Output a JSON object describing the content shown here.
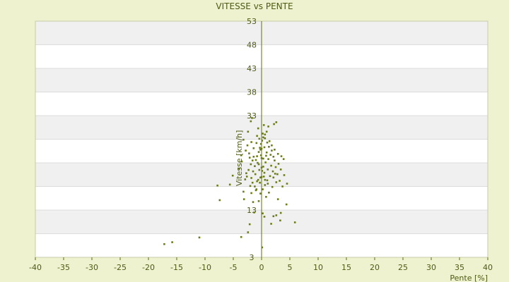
{
  "chart_data": {
    "type": "scatter",
    "title": "VITESSE vs PENTE",
    "xlabel": "Pente [%]",
    "ylabel": "Vitesse [km/h]",
    "xlim": [
      -40,
      40
    ],
    "ylim": [
      3,
      53
    ],
    "x_ticks": [
      -40,
      -35,
      -30,
      -25,
      -20,
      -15,
      -10,
      -5,
      0,
      5,
      10,
      15,
      20,
      25,
      30,
      35,
      40
    ],
    "y_ticks": [
      3,
      8,
      13,
      18,
      23,
      28,
      33,
      38,
      43,
      48,
      53
    ],
    "x_tick_labels": [
      "-40",
      "-35",
      "-30",
      "-25",
      "-20",
      "-15",
      "-10",
      "-5",
      "0",
      "5",
      "10",
      "15",
      "20",
      "25",
      "30",
      "35",
      "40"
    ],
    "y_tick_labels": [
      "3",
      "",
      "13",
      "",
      "",
      "",
      "33",
      "38",
      "43",
      "48",
      "53"
    ],
    "grid": true,
    "legend": "none",
    "colors": {
      "background": "#eef2cf",
      "plot_band_light": "#ffffff",
      "plot_band_dark": "#f0f0f0",
      "marker": "#6b7d16",
      "axis": "#5f6b1a",
      "text": "#4f5a14"
    },
    "points": [
      [
        -17.2,
        5.8
      ],
      [
        -15.8,
        6.2
      ],
      [
        -11,
        7.2
      ],
      [
        -3.6,
        7.3
      ],
      [
        -2.4,
        8.3
      ],
      [
        0.1,
        5.1
      ],
      [
        -2.1,
        10
      ],
      [
        -1.3,
        12.5
      ],
      [
        -1.5,
        14.7
      ],
      [
        -0.5,
        14.9
      ],
      [
        -1.8,
        16.6
      ],
      [
        0.2,
        12.3
      ],
      [
        0.5,
        11.6
      ],
      [
        -1,
        17.2
      ],
      [
        1.7,
        10.1
      ],
      [
        2.1,
        11.7
      ],
      [
        3.4,
        12.4
      ],
      [
        4.4,
        14.2
      ],
      [
        5.9,
        10.4
      ],
      [
        3.3,
        10.8
      ],
      [
        2.6,
        11.9
      ],
      [
        2.9,
        15.3
      ],
      [
        -7.4,
        15.1
      ],
      [
        -7.8,
        18.2
      ],
      [
        -5.6,
        18.4
      ],
      [
        -5.1,
        20.3
      ],
      [
        -3.1,
        15.3
      ],
      [
        -3.2,
        16.9
      ],
      [
        -2.9,
        19.5
      ],
      [
        -2.7,
        20.8
      ],
      [
        -4,
        21.8
      ],
      [
        -3.5,
        23.3
      ],
      [
        -3.6,
        24.6
      ],
      [
        -2.8,
        25.6
      ],
      [
        -2,
        18.1
      ],
      [
        -1.8,
        19.8
      ],
      [
        -1.5,
        21.2
      ],
      [
        -1.2,
        22.3
      ],
      [
        -1,
        23.6
      ],
      [
        -0.8,
        24.4
      ],
      [
        -0.5,
        25.3
      ],
      [
        -0.3,
        26.2
      ],
      [
        -0.1,
        27
      ],
      [
        0.1,
        27.7
      ],
      [
        0.3,
        28.4
      ],
      [
        0.6,
        29
      ],
      [
        0.9,
        29.6
      ],
      [
        -0.6,
        30.3
      ],
      [
        0.4,
        31
      ],
      [
        1.2,
        30.7
      ],
      [
        2.2,
        31.2
      ],
      [
        2.6,
        31.6
      ],
      [
        -2.4,
        29.6
      ],
      [
        -1.9,
        31.8
      ],
      [
        -1.7,
        32.5
      ],
      [
        -0.8,
        28.7
      ],
      [
        1.4,
        27.6
      ],
      [
        1.8,
        26.7
      ],
      [
        2.3,
        25.8
      ],
      [
        2.9,
        24.9
      ],
      [
        3.5,
        24.4
      ],
      [
        3.9,
        23.8
      ],
      [
        -1.8,
        27.4
      ],
      [
        -2.5,
        26.7
      ],
      [
        -3.2,
        27.9
      ],
      [
        -2.1,
        24.1
      ],
      [
        0.2,
        17.4
      ],
      [
        0.6,
        18.3
      ],
      [
        1,
        19.3
      ],
      [
        1.5,
        20.2
      ],
      [
        2,
        21.2
      ],
      [
        2.5,
        22.1
      ],
      [
        3,
        22.8
      ],
      [
        3.4,
        21.6
      ],
      [
        4,
        20.4
      ],
      [
        4.5,
        18.6
      ],
      [
        -0.2,
        16.5
      ],
      [
        0.8,
        15.8
      ],
      [
        1.3,
        16.7
      ],
      [
        1.9,
        17.9
      ],
      [
        2.6,
        18.9
      ],
      [
        -0.6,
        19.4
      ],
      [
        -1.1,
        20.6
      ],
      [
        -0.4,
        21.5
      ],
      [
        0.3,
        22.2
      ],
      [
        0.7,
        23.1
      ],
      [
        1.2,
        23.8
      ],
      [
        1.6,
        24.7
      ],
      [
        -0.2,
        25.8
      ],
      [
        0.5,
        26.3
      ],
      [
        0.9,
        25.2
      ],
      [
        -0.7,
        23
      ],
      [
        -1.4,
        24.3
      ],
      [
        -1.9,
        22.7
      ],
      [
        -2.3,
        21.5
      ],
      [
        -2.6,
        20.1
      ],
      [
        -0.3,
        18.8
      ],
      [
        0.4,
        20.1
      ],
      [
        -0.9,
        17.4
      ],
      [
        1.1,
        21.6
      ],
      [
        1.7,
        22.4
      ],
      [
        2.3,
        23.5
      ],
      [
        2.8,
        20.6
      ],
      [
        3.2,
        19.2
      ],
      [
        3.7,
        18
      ],
      [
        -1.4,
        26.1
      ],
      [
        -0.9,
        27.2
      ],
      [
        -0.4,
        28.1
      ],
      [
        0.2,
        29.2
      ],
      [
        0.6,
        28.2
      ],
      [
        1,
        27.3
      ],
      [
        1.3,
        26.4
      ],
      [
        -0.1,
        24.6
      ],
      [
        0.3,
        23.9
      ],
      [
        0.8,
        24.5
      ],
      [
        -0.5,
        22.7
      ],
      [
        0.1,
        21.3
      ],
      [
        0.5,
        20.9
      ],
      [
        -0.8,
        19.1
      ],
      [
        -0.2,
        19.9
      ],
      [
        0.6,
        19.4
      ],
      [
        1.1,
        18.6
      ],
      [
        -1.6,
        18.8
      ],
      [
        -1.2,
        18
      ],
      [
        2.1,
        19.9
      ],
      [
        2.4,
        20.7
      ],
      [
        1.8,
        25.6
      ],
      [
        2.1,
        24.3
      ],
      [
        -2.2,
        25
      ],
      [
        -1.6,
        23.5
      ],
      [
        0,
        24
      ],
      [
        0,
        22
      ],
      [
        0,
        20
      ],
      [
        0,
        26
      ]
    ]
  }
}
